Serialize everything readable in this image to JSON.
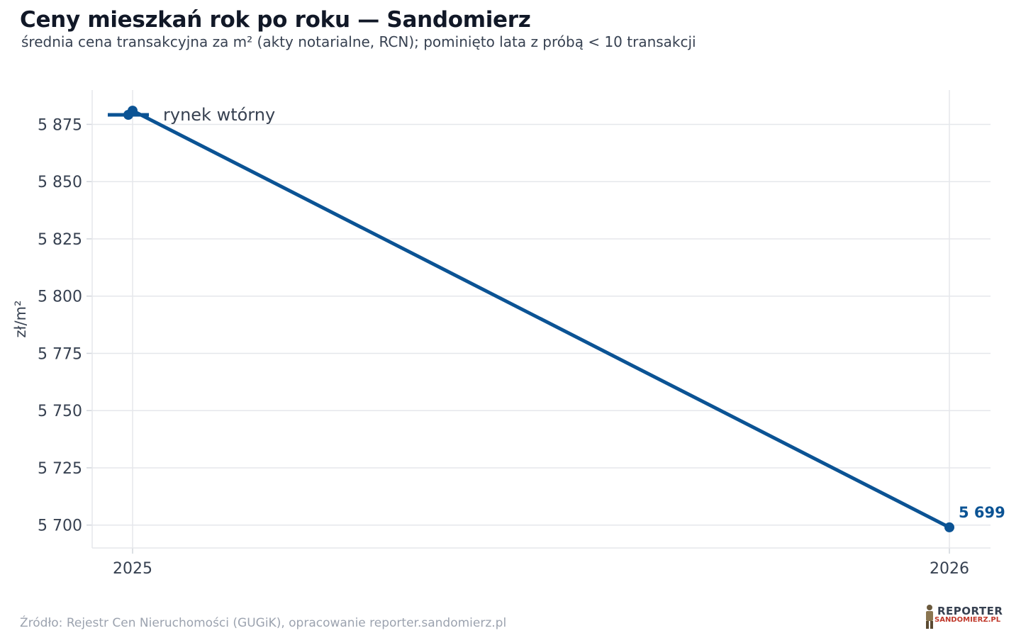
{
  "header": {
    "title": "Ceny mieszkań rok po roku — Sandomierz",
    "subtitle": "średnia cena transakcyjna za m² (akty notarialne, RCN); pominięto lata z próbą < 10 transakcji"
  },
  "footer": {
    "source": "Źródło: Rejestr Cen Nieruchomości (GUGiK), opracowanie reporter.sandomierz.pl",
    "logo_top": "REPORTER",
    "logo_bottom": "SANDOMIERZ.PL"
  },
  "chart_data": {
    "type": "line",
    "title": "Ceny mieszkań rok po roku — Sandomierz",
    "subtitle": "średnia cena transakcyjna za m² (akty notarialne, RCN); pominięto lata z próbą < 10 transakcji",
    "xlabel": "",
    "ylabel": "zł/m²",
    "x": [
      2025,
      2026
    ],
    "x_tick_labels": [
      "2025",
      "2026"
    ],
    "ylim": [
      5690,
      5890
    ],
    "y_ticks": [
      5700,
      5725,
      5750,
      5775,
      5800,
      5825,
      5850,
      5875
    ],
    "y_tick_labels": [
      "5 700",
      "5 725",
      "5 750",
      "5 775",
      "5 800",
      "5 825",
      "5 850",
      "5 875"
    ],
    "series": [
      {
        "name": "rynek wtórny",
        "color": "#0b5394",
        "values": [
          5881,
          5699
        ],
        "end_label": "5 699"
      }
    ],
    "grid": true,
    "legend_position": "top-left"
  }
}
